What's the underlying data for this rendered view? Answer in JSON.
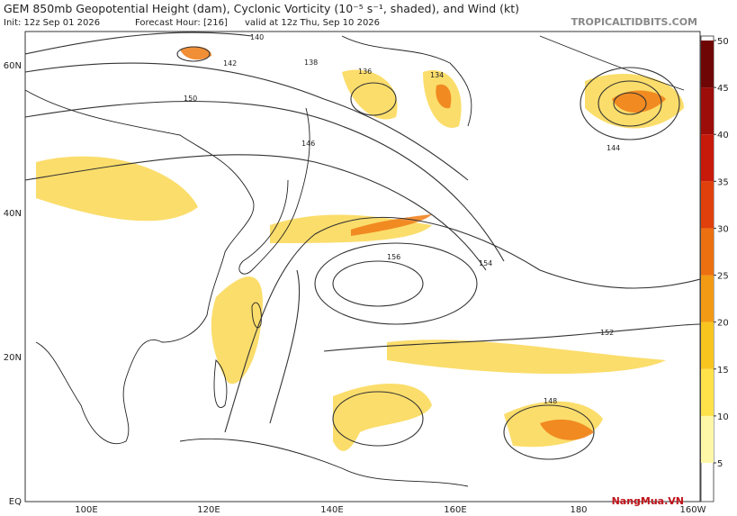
{
  "header": {
    "title": "GEM 850mb Geopotential Height (dam), Cyclonic Vorticity (10⁻⁵ s⁻¹, shaded), and Wind (kt)",
    "init": "Init: 12z Sep 01 2026",
    "forecast_hour": "Forecast Hour: [216]",
    "valid": "valid at 12z Thu, Sep 10 2026",
    "source": "TROPICALTIDBITS.COM"
  },
  "map": {
    "lat_labels": [
      "60N",
      "40N",
      "20N",
      "EQ"
    ],
    "lon_labels": [
      "100E",
      "120E",
      "140E",
      "160E",
      "180",
      "160W"
    ],
    "contour_labels": [
      "140",
      "142",
      "138",
      "136",
      "134",
      "150",
      "156",
      "154",
      "152",
      "148",
      "144",
      "146"
    ]
  },
  "colorbar": {
    "ticks": [
      5,
      10,
      15,
      20,
      25,
      30,
      35,
      40,
      45,
      50
    ],
    "colors": [
      "#fff7a8",
      "#ffe24a",
      "#f8c51e",
      "#f39a14",
      "#ec6f10",
      "#e0400c",
      "#c81a0a",
      "#9c0c08",
      "#6e0606"
    ]
  },
  "watermark": "NangMua.VN"
}
